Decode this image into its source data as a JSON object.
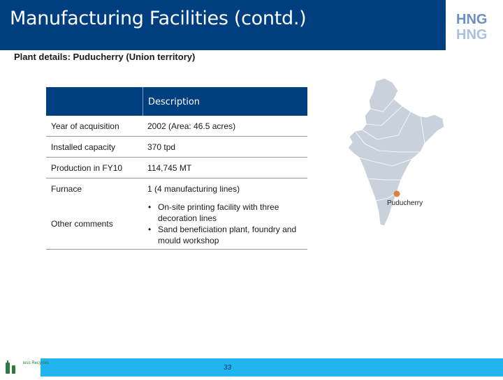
{
  "header": {
    "title": "Manufacturing Facilities (contd.)",
    "logo_icon": "hng-logo-icon",
    "brand_color": "#003f7f"
  },
  "subtitle": "Plant details: Puducherry (Union territory)",
  "table": {
    "header_col2": "Description",
    "rows": [
      {
        "label": "Year of acquisition",
        "value": "2002 (Area: 46.5 acres)"
      },
      {
        "label": "Installed capacity",
        "value": "370 tpd"
      },
      {
        "label": "Production in FY10",
        "value": "114,745 MT"
      },
      {
        "label": "Furnace",
        "value": "1 (4 manufacturing lines)"
      },
      {
        "label": "Other comments",
        "bullets": [
          "On-site printing facility with three decoration lines",
          "Sand beneficiation plant, foundry and mould workshop"
        ]
      }
    ]
  },
  "map": {
    "icon": "india-map-icon",
    "location_label": "Puducherry",
    "marker_color": "#d9823b"
  },
  "footer": {
    "page_number": "33",
    "logo_icon": "recycle-logo-icon",
    "logo_text": "less Recycles",
    "color": "#21b4ee"
  }
}
